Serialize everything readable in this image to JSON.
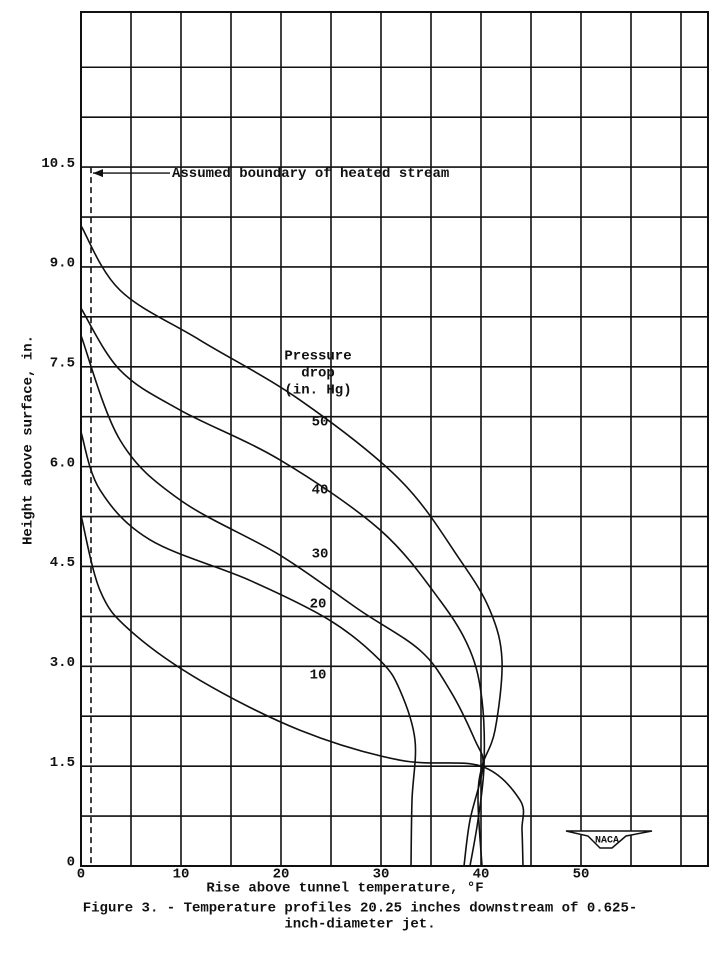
{
  "chart_data": {
    "type": "line",
    "title": "Figure 3. - Temperature profiles 20.25 inches downstream of 0.625-",
    "title_line2": "inch-diameter jet.",
    "xlabel": "Rise above tunnel temperature, °F",
    "ylabel": "Height above surface, in.",
    "xlim": [
      0,
      62.7
    ],
    "ylim": [
      0,
      12.83
    ],
    "xticks": [
      0,
      10,
      20,
      30,
      40,
      50
    ],
    "xminor": [
      5,
      15,
      25,
      35,
      45,
      55,
      60
    ],
    "yticks": [
      0,
      1.5,
      {
        "value": 3,
        "label": "3.0"
      },
      4.5,
      {
        "value": 6,
        "label": "6.0"
      },
      7.5,
      {
        "value": 9,
        "label": "9.0"
      },
      10.5
    ],
    "yminor": [
      0.75,
      2.25,
      3.75,
      5.25,
      6.75,
      8.25,
      9.75,
      11.25,
      12
    ],
    "grid": true,
    "color": "#111111",
    "legend_title": [
      "Pressure",
      "drop",
      "(in. Hg)"
    ],
    "boundary": {
      "x": 1,
      "y": 10.5,
      "label": "Assumed boundary of heated stream"
    },
    "logo": "NACA",
    "series": [
      {
        "name": "10",
        "x": [
          0,
          1.9,
          4.9,
          11.9,
          21.9,
          31.9,
          40,
          43.9,
          44.1,
          44.2
        ],
        "values": [
          5.27,
          4.14,
          3.54,
          2.79,
          2.04,
          1.59,
          1.5,
          0.99,
          0.54,
          0
        ]
      },
      {
        "name": "20",
        "x": [
          0,
          1.9,
          6.9,
          16.9,
          24.9,
          29.9,
          31.9,
          33.4,
          33.1,
          33
        ],
        "values": [
          6.52,
          5.65,
          4.9,
          4.29,
          3.69,
          3.09,
          2.64,
          1.89,
          0.99,
          0
        ]
      },
      {
        "name": "30",
        "x": [
          0,
          3.9,
          9.9,
          19.9,
          27.9,
          33.9,
          36.9,
          39.4,
          40.2,
          38.9,
          38.3
        ],
        "values": [
          7.97,
          6.4,
          5.5,
          4.67,
          3.84,
          3.24,
          2.64,
          1.89,
          1.5,
          0.69,
          0
        ]
      },
      {
        "name": "40",
        "x": [
          0,
          3.9,
          9.9,
          19.9,
          29.9,
          35.9,
          38.9,
          40.1,
          40.3,
          39.7,
          38.9
        ],
        "values": [
          8.38,
          7.45,
          6.85,
          6.1,
          5.05,
          3.99,
          3.24,
          2.49,
          1.5,
          0.69,
          0
        ]
      },
      {
        "name": "50",
        "x": [
          0,
          3.9,
          11.9,
          21.9,
          31.9,
          37.9,
          40.9,
          42.1,
          41.4,
          40.1,
          39.7,
          40.1
        ],
        "values": [
          9.62,
          8.65,
          7.9,
          7.0,
          5.8,
          4.6,
          3.84,
          3.09,
          2.04,
          1.5,
          0.99,
          0
        ]
      }
    ]
  }
}
